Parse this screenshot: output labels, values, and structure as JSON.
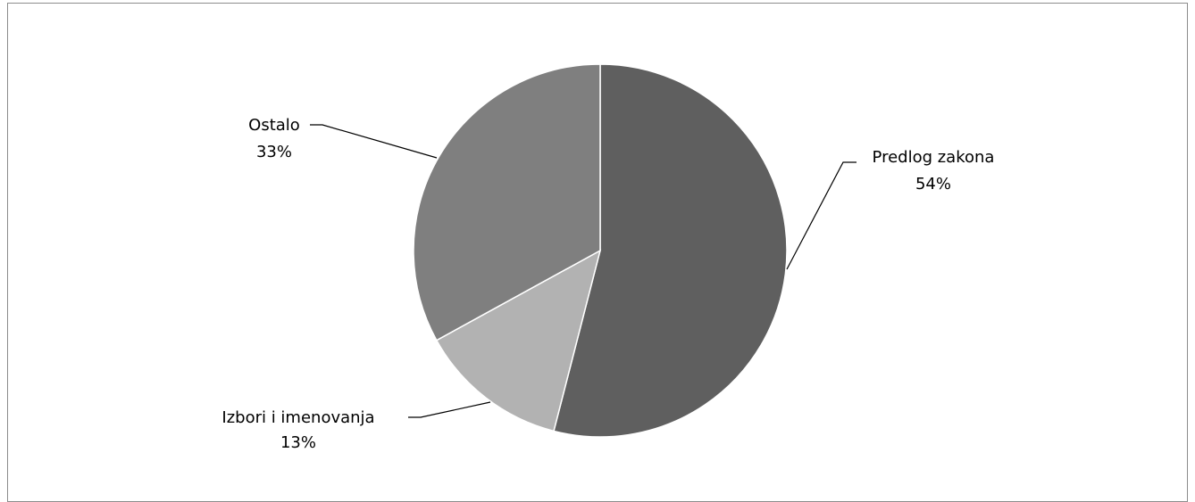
{
  "chart_data": {
    "type": "pie",
    "title": "",
    "categories": [
      "Predlog zakona",
      "Izbori i imenovanja",
      "Ostalo"
    ],
    "values": [
      54,
      13,
      33
    ],
    "labels": [
      {
        "name": "Predlog zakona",
        "percent": "54%"
      },
      {
        "name": "Izbori i imenovanja",
        "percent": "13%"
      },
      {
        "name": "Ostalo",
        "percent": "33%"
      }
    ],
    "colors": [
      "#5f5f5f",
      "#b2b2b2",
      "#7f7f7f"
    ],
    "start_angle": "12 o'clock",
    "direction": "clockwise",
    "legend": "none",
    "data_labels": "outside with leader lines"
  }
}
